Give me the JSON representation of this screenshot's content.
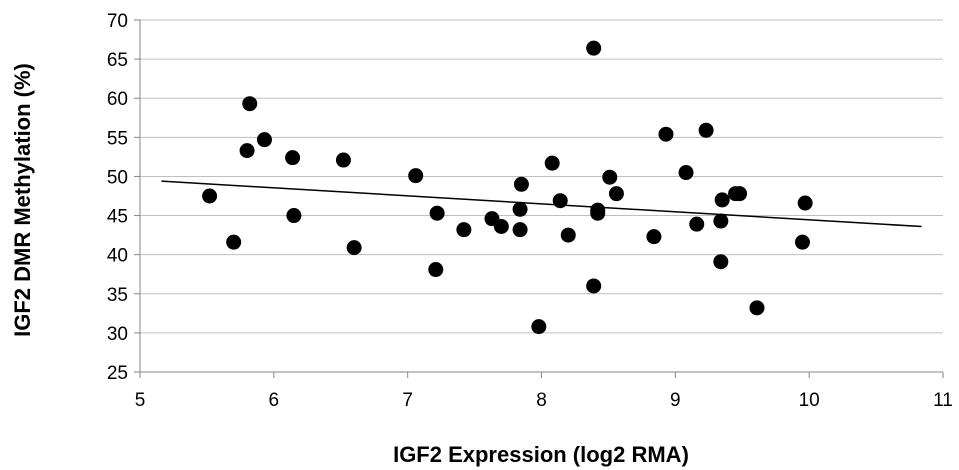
{
  "chart_data": {
    "type": "scatter",
    "xlabel": "IGF2 Expression (log2 RMA)",
    "ylabel": "IGF2 DMR Methylation (%)",
    "xlim": [
      5,
      11
    ],
    "ylim": [
      25,
      70
    ],
    "xticks": [
      5,
      6,
      7,
      8,
      9,
      10,
      11
    ],
    "yticks": [
      25,
      30,
      35,
      40,
      45,
      50,
      55,
      60,
      65,
      70
    ],
    "grid": "horizontal",
    "legend": "none",
    "point_color": "#000000",
    "series": [
      {
        "points": [
          [
            5.52,
            47.5
          ],
          [
            5.7,
            41.6
          ],
          [
            5.8,
            53.3
          ],
          [
            5.82,
            59.3
          ],
          [
            5.93,
            54.7
          ],
          [
            6.14,
            52.4
          ],
          [
            6.15,
            45.0
          ],
          [
            6.52,
            52.1
          ],
          [
            6.6,
            40.9
          ],
          [
            7.06,
            50.1
          ],
          [
            7.21,
            38.1
          ],
          [
            7.22,
            45.3
          ],
          [
            7.42,
            43.2
          ],
          [
            7.63,
            44.6
          ],
          [
            7.7,
            43.6
          ],
          [
            7.84,
            43.2
          ],
          [
            7.84,
            45.8
          ],
          [
            7.85,
            49.0
          ],
          [
            7.98,
            30.8
          ],
          [
            8.08,
            51.7
          ],
          [
            8.14,
            46.9
          ],
          [
            8.2,
            42.5
          ],
          [
            8.39,
            36.0
          ],
          [
            8.39,
            66.4
          ],
          [
            8.42,
            45.7
          ],
          [
            8.42,
            45.3
          ],
          [
            8.51,
            49.9
          ],
          [
            8.56,
            47.8
          ],
          [
            8.84,
            42.3
          ],
          [
            8.93,
            55.4
          ],
          [
            9.08,
            50.5
          ],
          [
            9.16,
            43.9
          ],
          [
            9.23,
            55.9
          ],
          [
            9.34,
            44.3
          ],
          [
            9.35,
            47.0
          ],
          [
            9.34,
            39.1
          ],
          [
            9.45,
            47.8
          ],
          [
            9.48,
            47.8
          ],
          [
            9.61,
            33.2
          ],
          [
            9.95,
            41.6
          ],
          [
            9.97,
            46.6
          ]
        ]
      }
    ],
    "trendline": {
      "x": [
        5.16,
        10.84
      ],
      "y": [
        49.4,
        43.6
      ]
    }
  }
}
